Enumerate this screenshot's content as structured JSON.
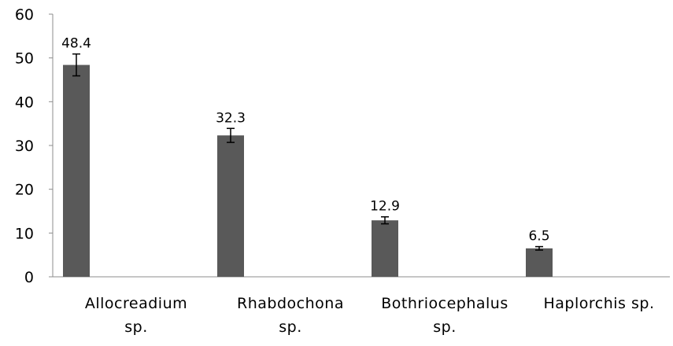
{
  "chart_data": {
    "type": "bar",
    "title": "",
    "xlabel": "",
    "ylabel": "",
    "categories": [
      [
        "Allocreadium",
        "sp."
      ],
      [
        "Rhabdochona",
        "sp."
      ],
      [
        "Bothriocephalus",
        "sp."
      ],
      [
        "Haplorchis sp."
      ]
    ],
    "values": [
      48.4,
      32.3,
      12.9,
      6.5
    ],
    "error": [
      2.5,
      1.6,
      0.8,
      0.4
    ],
    "data_labels": [
      "48.4",
      "32.3",
      "12.9",
      "6.5"
    ],
    "ylim": [
      0,
      60
    ],
    "yticks": [
      0,
      10,
      20,
      30,
      40,
      50,
      60
    ],
    "grid": false,
    "legend": "none",
    "bar_color": "#595959"
  }
}
